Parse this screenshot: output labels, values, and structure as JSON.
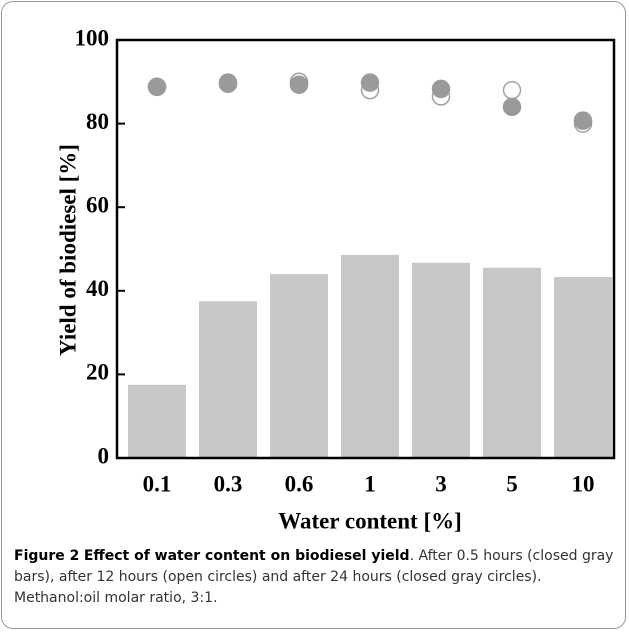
{
  "chart_data": {
    "type": "bar",
    "ylabel": "Yield of biodiesel [%]",
    "xlabel": "Water content [%]",
    "categories": [
      "0.1",
      "0.3",
      "0.6",
      "1",
      "3",
      "5",
      "10"
    ],
    "ylim": [
      0,
      100
    ],
    "yticks": [
      0,
      20,
      40,
      60,
      80,
      100
    ],
    "series": [
      {
        "type": "bar",
        "color": "#c8c8c8",
        "values": [
          17.5,
          37.5,
          44,
          48.6,
          46.7,
          45.5,
          43.3
        ]
      },
      {
        "type": "scatter",
        "marker": "open",
        "color": "#a0a0a0",
        "values": [
          88.8,
          89.5,
          90,
          88,
          86.5,
          88,
          80
        ]
      },
      {
        "type": "scatter",
        "marker": "closed",
        "color": "#9a9a9a",
        "values": [
          88.8,
          89.8,
          89.3,
          89.8,
          88.3,
          84,
          80.7
        ]
      }
    ]
  },
  "caption": {
    "label": "Figure 2",
    "title": "Effect of water content on biodiesel yield",
    "text": ". After 0.5 hours (closed gray bars), after 12 hours (open circles) and after 24 hours (closed gray circles). Methanol:oil molar ratio, 3:1."
  }
}
